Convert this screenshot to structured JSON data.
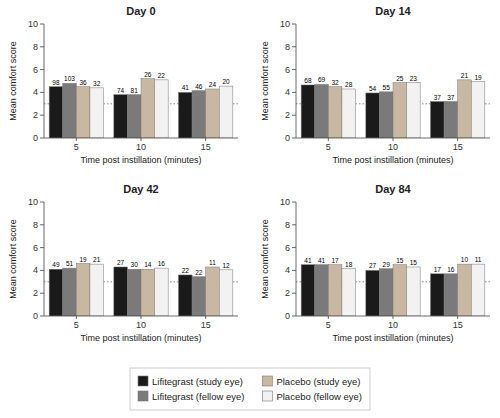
{
  "chart_data": [
    {
      "type": "bar",
      "title": "Day 0",
      "categories": [
        "5",
        "10",
        "15"
      ],
      "xlabel": "Time post instillation (minutes)",
      "ylabel": "Mean comfort score",
      "ylim": [
        0,
        10
      ],
      "yticks": [
        0,
        2,
        4,
        6,
        8,
        10
      ],
      "reference_line": 3.0,
      "legend": "bottom",
      "series": [
        {
          "name": "Lifitegrast (study eye)",
          "color": "#1a1a1a",
          "values": [
            4.5,
            3.8,
            4.0
          ],
          "n": [
            98,
            74,
            41
          ]
        },
        {
          "name": "Lifitegrast (fellow eye)",
          "color": "#7a7a7a",
          "values": [
            4.8,
            3.8,
            4.15
          ],
          "n": [
            103,
            81,
            46
          ]
        },
        {
          "name": "Placebo (study eye)",
          "color": "#c8b8a2",
          "values": [
            4.5,
            5.2,
            4.3
          ],
          "n": [
            36,
            26,
            24
          ]
        },
        {
          "name": "Placebo (fellow eye)",
          "color": "#f2f2f2",
          "values": [
            4.4,
            5.1,
            4.55
          ],
          "n": [
            32,
            22,
            20
          ]
        }
      ]
    },
    {
      "type": "bar",
      "title": "Day 14",
      "categories": [
        "5",
        "10",
        "15"
      ],
      "xlabel": "Time post instillation (minutes)",
      "ylabel": "Mean comfort score",
      "ylim": [
        0,
        10
      ],
      "yticks": [
        0,
        2,
        4,
        6,
        8,
        10
      ],
      "reference_line": 3.0,
      "series": [
        {
          "name": "Lifitegrast (study eye)",
          "color": "#1a1a1a",
          "values": [
            4.65,
            3.95,
            3.2
          ],
          "n": [
            68,
            54,
            37
          ]
        },
        {
          "name": "Lifitegrast (fellow eye)",
          "color": "#7a7a7a",
          "values": [
            4.7,
            4.05,
            3.2
          ],
          "n": [
            69,
            55,
            37
          ]
        },
        {
          "name": "Placebo (study eye)",
          "color": "#c8b8a2",
          "values": [
            4.5,
            4.85,
            5.1
          ],
          "n": [
            32,
            25,
            21
          ]
        },
        {
          "name": "Placebo (fellow eye)",
          "color": "#f2f2f2",
          "values": [
            4.3,
            4.85,
            4.95
          ],
          "n": [
            28,
            23,
            19
          ]
        }
      ]
    },
    {
      "type": "bar",
      "title": "Day 42",
      "categories": [
        "5",
        "10",
        "15"
      ],
      "xlabel": "Time post instillation (minutes)",
      "ylabel": "Mean comfort score",
      "ylim": [
        0,
        10
      ],
      "yticks": [
        0,
        2,
        4,
        6,
        8,
        10
      ],
      "reference_line": 3.0,
      "series": [
        {
          "name": "Lifitegrast (study eye)",
          "color": "#1a1a1a",
          "values": [
            4.1,
            4.3,
            3.6
          ],
          "n": [
            49,
            27,
            22
          ]
        },
        {
          "name": "Lifitegrast (fellow eye)",
          "color": "#7a7a7a",
          "values": [
            4.2,
            4.1,
            3.45
          ],
          "n": [
            51,
            30,
            22
          ]
        },
        {
          "name": "Placebo (study eye)",
          "color": "#c8b8a2",
          "values": [
            4.6,
            4.1,
            4.3
          ],
          "n": [
            19,
            14,
            11
          ]
        },
        {
          "name": "Placebo (fellow eye)",
          "color": "#f2f2f2",
          "values": [
            4.55,
            4.2,
            4.05
          ],
          "n": [
            21,
            16,
            12
          ]
        }
      ]
    },
    {
      "type": "bar",
      "title": "Day 84",
      "categories": [
        "5",
        "10",
        "15"
      ],
      "xlabel": "Time post instillation (minutes)",
      "ylabel": "Mean comfort score",
      "ylim": [
        0,
        10
      ],
      "yticks": [
        0,
        2,
        4,
        6,
        8,
        10
      ],
      "reference_line": 3.0,
      "series": [
        {
          "name": "Lifitegrast (study eye)",
          "color": "#1a1a1a",
          "values": [
            4.5,
            4.0,
            3.7
          ],
          "n": [
            41,
            27,
            17
          ]
        },
        {
          "name": "Lifitegrast (fellow eye)",
          "color": "#7a7a7a",
          "values": [
            4.5,
            4.15,
            3.7
          ],
          "n": [
            41,
            29,
            16
          ]
        },
        {
          "name": "Placebo (study eye)",
          "color": "#c8b8a2",
          "values": [
            4.5,
            4.5,
            4.55
          ],
          "n": [
            17,
            15,
            10
          ]
        },
        {
          "name": "Placebo (fellow eye)",
          "color": "#f2f2f2",
          "values": [
            4.15,
            4.3,
            4.55
          ],
          "n": [
            18,
            15,
            11
          ]
        }
      ]
    }
  ]
}
